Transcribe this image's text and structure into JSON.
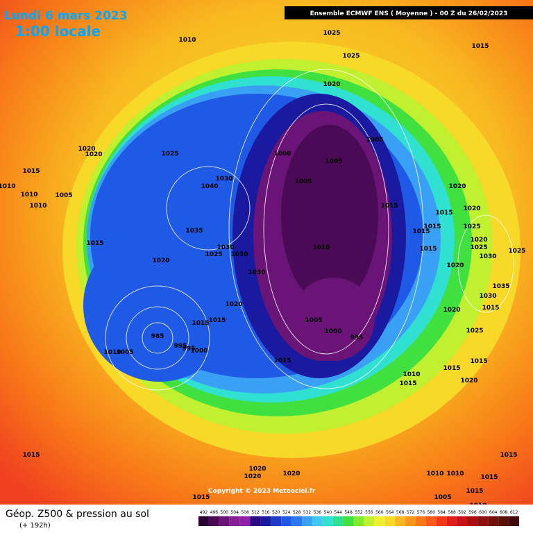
{
  "header": {
    "date": "Lundi 6 mars 2023",
    "time": "1:00 locale",
    "model": "Ensemble ECMWF ENS  ( Moyenne )  -  00 Z du 26/02/2023"
  },
  "map": {
    "copyright": "Copyright © 2023 Meteociel.fr",
    "pressure_labels": [
      "1010",
      "1025",
      "1025",
      "1015",
      "1020",
      "1005",
      "1000",
      "1005",
      "1005",
      "1020",
      "1015",
      "1015",
      "1015",
      "1015",
      "1010",
      "1015",
      "1020",
      "1020",
      "1025",
      "1020",
      "1025",
      "1030",
      "1025",
      "1030",
      "1030",
      "1025",
      "1030",
      "1035",
      "1020",
      "1030",
      "1040",
      "1025",
      "1020",
      "1020",
      "1015",
      "1010",
      "1010",
      "1005",
      "1010",
      "1015",
      "1020",
      "1015",
      "1015",
      "985",
      "995",
      "995",
      "1000",
      "1010",
      "1005",
      "1005",
      "1000",
      "995",
      "1015",
      "1010",
      "1015",
      "1015",
      "1015",
      "1020",
      "1025",
      "1020",
      "1015",
      "1035",
      "1030",
      "1015",
      "1020",
      "1020",
      "1020",
      "1015",
      "1010",
      "1010",
      "1015",
      "1015",
      "1005",
      "1015",
      "1010"
    ]
  },
  "footer": {
    "title": "Géop. Z500 & pression au sol",
    "lead": "(+ 192h)"
  },
  "legend": {
    "values": [
      492,
      496,
      500,
      504,
      508,
      512,
      516,
      520,
      524,
      528,
      532,
      536,
      540,
      544,
      548,
      552,
      556,
      560,
      564,
      568,
      572,
      576,
      580,
      584,
      588,
      592,
      596,
      600,
      604,
      608,
      612
    ],
    "colors": [
      "#2a0033",
      "#4a0a55",
      "#6a1478",
      "#861e96",
      "#9020a8",
      "#2a0a80",
      "#1a1aa0",
      "#1e3cc8",
      "#1e5ae6",
      "#2a78f0",
      "#3aa0f5",
      "#40c8f0",
      "#30e0d0",
      "#30e090",
      "#40e040",
      "#80ec30",
      "#c0f030",
      "#f0f030",
      "#f8d828",
      "#f8b820",
      "#f89818",
      "#f87818",
      "#f85818",
      "#f03818",
      "#e02018",
      "#c81018",
      "#a81010",
      "#901010",
      "#701008",
      "#581008",
      "#400808"
    ]
  }
}
